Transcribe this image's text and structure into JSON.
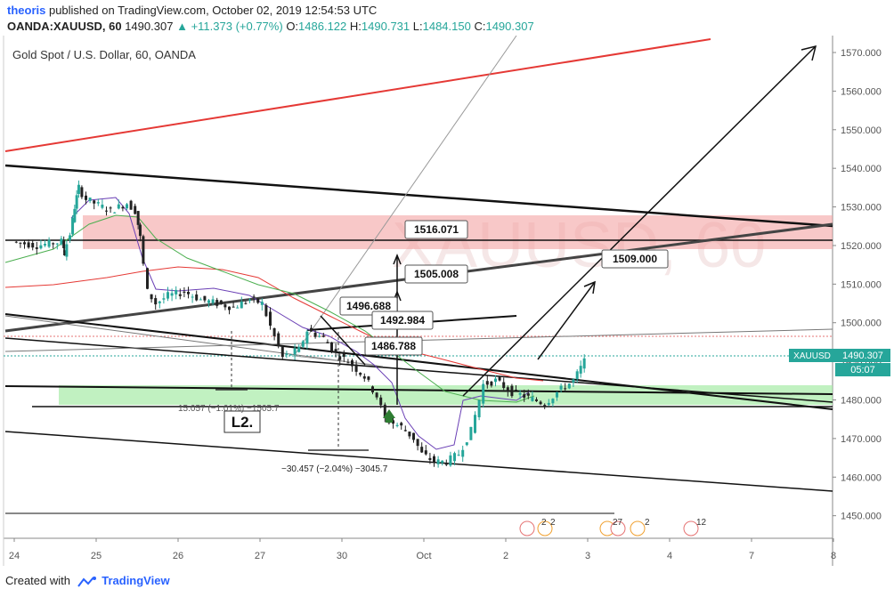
{
  "header": {
    "user": "theoris",
    "published": "published on TradingView.com, October 02, 2019 12:54:53 UTC",
    "symbol": "OANDA:XAUUSD, 60",
    "last": "1490.307",
    "change": "+11.373 (+0.77%)",
    "ohlc": {
      "o_label": "O:",
      "o": "1486.122",
      "h_label": "H:",
      "h": "1490.731",
      "l_label": "L:",
      "l": "1484.150",
      "c_label": "C:",
      "c": "1490.307"
    }
  },
  "chart_title": "Gold Spot / U.S. Dollar, 60, OANDA",
  "watermark": "XAUUSD, 60",
  "footer": {
    "created_with": "Created with",
    "brand": "TradingView"
  },
  "chart_data": {
    "type": "line",
    "title": "Gold Spot / U.S. Dollar, 60, OANDA",
    "xlabel": "",
    "ylabel": "",
    "ylim": [
      1446,
      1573
    ],
    "x_tick_labels": [
      "24",
      "25",
      "26",
      "27",
      "30",
      "Oct",
      "2",
      "3",
      "4",
      "7",
      "8"
    ],
    "y_tick_labels": [
      "1450.000",
      "1460.000",
      "1470.000",
      "1480.000",
      "1490.000",
      "1500.000",
      "1510.000",
      "1520.000",
      "1530.000",
      "1540.000",
      "1550.000",
      "1560.000",
      "1570.000"
    ],
    "price_label": "XAUUSD",
    "price_value": "1490.307",
    "countdown": "05:07",
    "series": [
      {
        "values": [
          [
            0.0,
            1521
          ],
          [
            0.3,
            1520
          ],
          [
            0.6,
            1521
          ],
          [
            0.62,
            1518
          ],
          [
            0.7,
            1523
          ],
          [
            0.75,
            1530
          ],
          [
            0.8,
            1535
          ],
          [
            0.9,
            1532
          ],
          [
            1.0,
            1531
          ],
          [
            1.2,
            1529
          ],
          [
            1.4,
            1531
          ],
          [
            1.5,
            1529
          ],
          [
            1.55,
            1522
          ],
          [
            1.65,
            1508
          ],
          [
            1.75,
            1505
          ],
          [
            1.9,
            1507
          ],
          [
            2.1,
            1508
          ],
          [
            2.3,
            1506
          ],
          [
            2.5,
            1505
          ],
          [
            2.7,
            1504
          ],
          [
            2.9,
            1506
          ],
          [
            3.05,
            1505
          ],
          [
            3.15,
            1499
          ],
          [
            3.3,
            1491
          ],
          [
            3.5,
            1493
          ],
          [
            3.6,
            1498
          ],
          [
            3.8,
            1496
          ],
          [
            3.95,
            1492
          ],
          [
            4.1,
            1490
          ],
          [
            4.3,
            1486
          ],
          [
            4.45,
            1481
          ],
          [
            4.55,
            1475
          ],
          [
            4.75,
            1473
          ],
          [
            4.9,
            1470
          ],
          [
            5.0,
            1466
          ],
          [
            5.15,
            1464
          ],
          [
            5.3,
            1464
          ],
          [
            5.45,
            1466
          ],
          [
            5.6,
            1472
          ],
          [
            5.75,
            1484
          ],
          [
            5.9,
            1485
          ],
          [
            6.1,
            1482
          ],
          [
            6.25,
            1481
          ],
          [
            6.5,
            1479
          ],
          [
            6.65,
            1482
          ],
          [
            6.85,
            1485
          ],
          [
            6.98,
            1490
          ]
        ]
      }
    ],
    "annotations": [
      {
        "text": "1516.071",
        "y": 1516.071
      },
      {
        "text": "1505.008",
        "y": 1505.008
      },
      {
        "text": "1496.688",
        "y": 1496.688
      },
      {
        "text": "1492.984",
        "y": 1492.984
      },
      {
        "text": "1486.788",
        "y": 1486.788
      },
      {
        "text": "1509.000",
        "y": 1509.0
      },
      {
        "text": "L2."
      },
      {
        "text": "15.057 (−1.01%) −1505.7"
      },
      {
        "text": "−30.457 (−2.04%) −3045.7"
      }
    ],
    "zones": [
      {
        "name": "resistance",
        "y_from": 1517,
        "y_to": 1526,
        "color": "#f4a3a3"
      },
      {
        "name": "support",
        "y_from": 1478,
        "y_to": 1483,
        "color": "#a6eba6"
      }
    ],
    "event_badges": [
      "2",
      "2",
      "27",
      "2",
      "12"
    ],
    "colors": {
      "candle_up": "#26a69a",
      "candle_down": "#222222",
      "ema_fast": "#6a3fb5",
      "ema_mid": "#4caf50",
      "ema_slow": "#e53935",
      "price_line": "#26a69a"
    }
  }
}
